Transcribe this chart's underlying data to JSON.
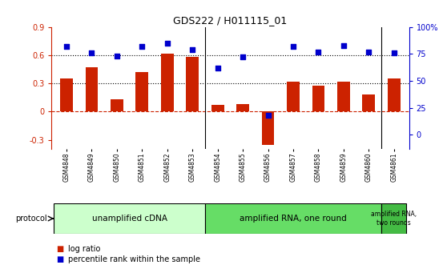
{
  "title": "GDS222 / H011115_01",
  "samples": [
    "GSM4848",
    "GSM4849",
    "GSM4850",
    "GSM4851",
    "GSM4852",
    "GSM4853",
    "GSM4854",
    "GSM4855",
    "GSM4856",
    "GSM4857",
    "GSM4858",
    "GSM4859",
    "GSM4860",
    "GSM4861"
  ],
  "log_ratio": [
    0.35,
    0.47,
    0.13,
    0.42,
    0.62,
    0.58,
    0.07,
    0.08,
    -0.35,
    0.32,
    0.28,
    0.32,
    0.18,
    0.35
  ],
  "percentile": [
    82,
    76,
    73,
    82,
    85,
    79,
    62,
    72,
    18,
    82,
    77,
    83,
    77,
    76
  ],
  "bar_color": "#cc2200",
  "dot_color": "#0000cc",
  "ylim_left": [
    -0.4,
    0.9
  ],
  "ylim_right": [
    -13.33,
    100
  ],
  "yticks_left": [
    -0.3,
    0.0,
    0.3,
    0.6,
    0.9
  ],
  "yticks_right": [
    0,
    25,
    50,
    75,
    100
  ],
  "ytick_labels_right": [
    "0",
    "25",
    "50",
    "75",
    "100%"
  ],
  "ytick_labels_left": [
    "-0.3",
    "0",
    "0.3",
    "0.6",
    "0.9"
  ],
  "hlines": [
    0.3,
    0.6
  ],
  "protocol_groups": [
    {
      "label": "unamplified cDNA",
      "start": 0,
      "end": 5,
      "color": "#ccffcc"
    },
    {
      "label": "amplified RNA, one round",
      "start": 6,
      "end": 12,
      "color": "#66dd66"
    },
    {
      "label": "amplified RNA,\ntwo rounds",
      "start": 13,
      "end": 13,
      "color": "#44bb44"
    }
  ],
  "protocol_label": "protocol",
  "legend_bar_label": "log ratio",
  "legend_dot_label": "percentile rank within the sample",
  "background_color": "#ffffff"
}
